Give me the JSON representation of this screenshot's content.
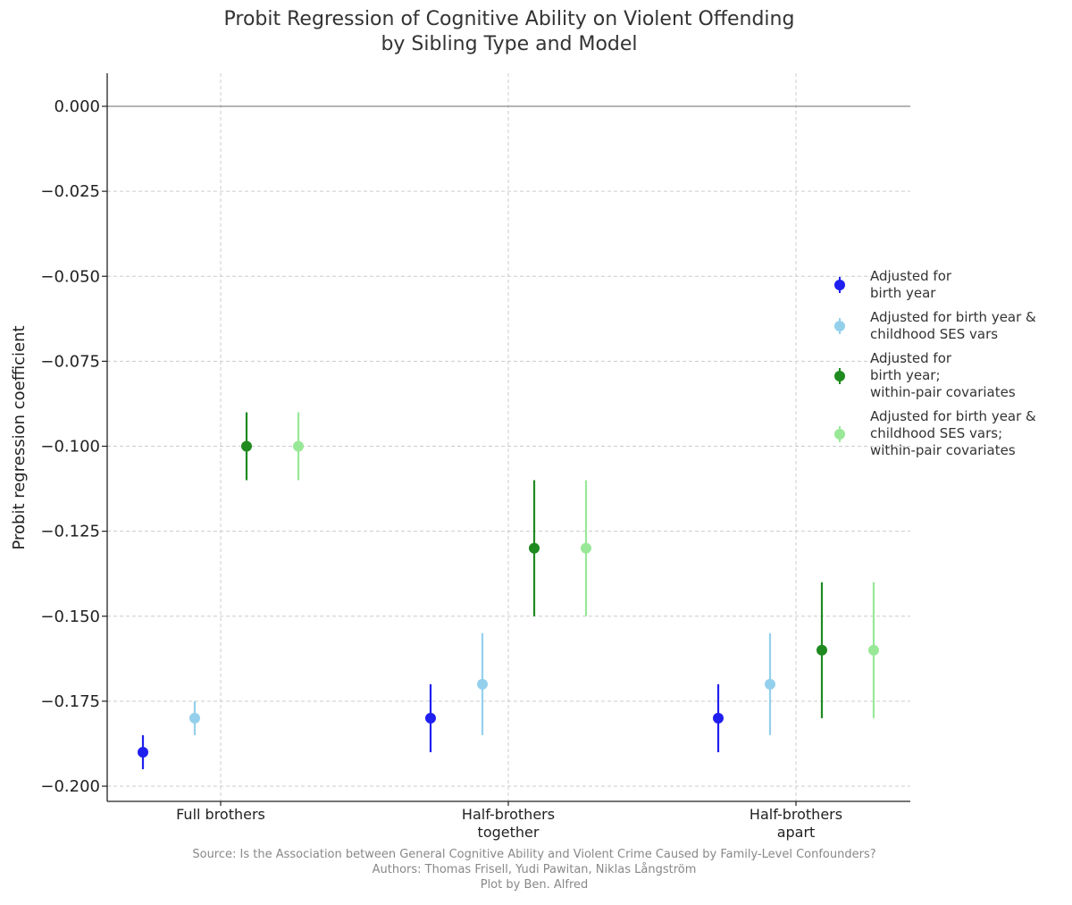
{
  "chart_data": {
    "type": "scatter",
    "subtype": "point-with-errorbars",
    "title_lines": [
      "Probit Regression of Cognitive Ability on Violent Offending",
      "by Sibling Type and Model"
    ],
    "ylabel": "Probit regression coefficient",
    "xlabel": "",
    "ylim": [
      -0.205,
      0.01
    ],
    "yticks": [
      0.0,
      -0.025,
      -0.05,
      -0.075,
      -0.1,
      -0.125,
      -0.15,
      -0.175,
      -0.2
    ],
    "ytick_labels": [
      "0.000",
      "−0.025",
      "−0.050",
      "−0.075",
      "−0.100",
      "−0.125",
      "−0.150",
      "−0.175",
      "−0.200"
    ],
    "reference_line": 0.0,
    "grid": true,
    "legend_position": "right",
    "categories": [
      {
        "lines": [
          "Full brothers"
        ]
      },
      {
        "lines": [
          "Half-brothers",
          "together"
        ]
      },
      {
        "lines": [
          "Half-brothers",
          "apart"
        ]
      }
    ],
    "series": [
      {
        "name_lines": [
          "Adjusted for",
          "birth year"
        ],
        "color": "#1f1fef",
        "values": [
          -0.19,
          -0.18,
          -0.18
        ],
        "lower": [
          -0.195,
          -0.19,
          -0.19
        ],
        "upper": [
          -0.185,
          -0.17,
          -0.17
        ]
      },
      {
        "name_lines": [
          "Adjusted for birth year &",
          "childhood SES vars"
        ],
        "color": "#94d0ec",
        "values": [
          -0.18,
          -0.17,
          -0.17
        ],
        "lower": [
          -0.185,
          -0.185,
          -0.185
        ],
        "upper": [
          -0.175,
          -0.155,
          -0.155
        ]
      },
      {
        "name_lines": [
          "Adjusted for",
          "birth year;",
          "within-pair covariates"
        ],
        "color": "#1f8a1f",
        "values": [
          -0.1,
          -0.13,
          -0.16
        ],
        "lower": [
          -0.11,
          -0.15,
          -0.18
        ],
        "upper": [
          -0.09,
          -0.11,
          -0.14
        ]
      },
      {
        "name_lines": [
          "Adjusted for birth year &",
          "childhood SES vars;",
          "within-pair covariates"
        ],
        "color": "#98e898",
        "values": [
          -0.1,
          -0.13,
          -0.16
        ],
        "lower": [
          -0.11,
          -0.15,
          -0.18
        ],
        "upper": [
          -0.09,
          -0.11,
          -0.14
        ]
      }
    ]
  },
  "source_lines": [
    "Source: Is the Association between General Cognitive Ability and Violent Crime Caused by Family-Level Confounders?",
    "Authors: Thomas Frisell, Yudi Pawitan, Niklas Långström",
    "Plot by Ben. Alfred"
  ]
}
